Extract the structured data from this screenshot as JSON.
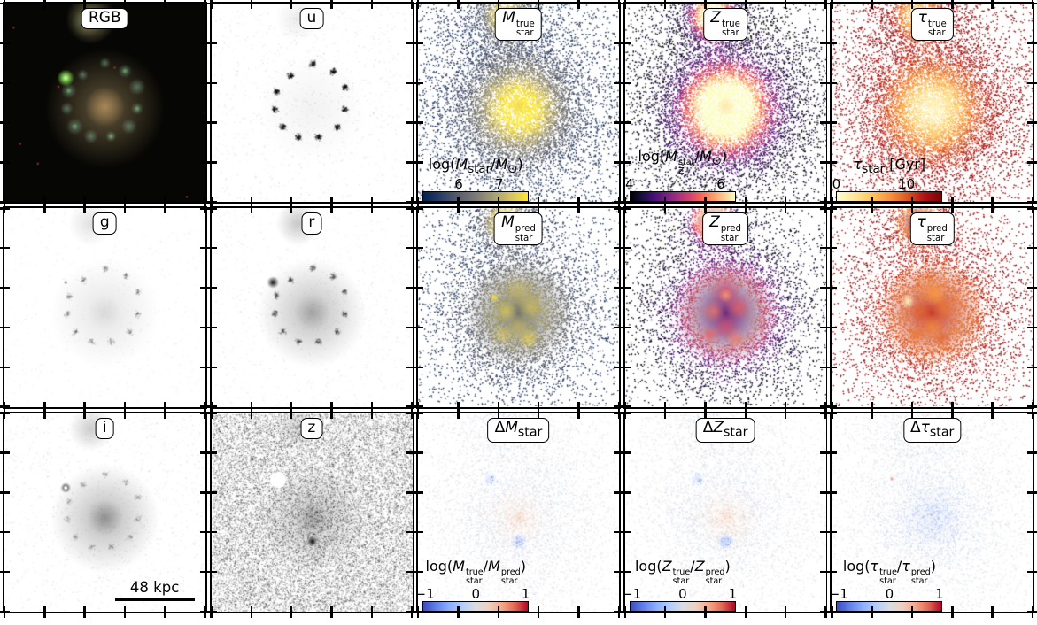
{
  "figure": {
    "colormaps": {
      "cividis": [
        "#00224e",
        "#2a3d67",
        "#575d6d",
        "#7b7a77",
        "#a59c74",
        "#d3c164",
        "#fde737"
      ],
      "magma": [
        "#000004",
        "#180f3e",
        "#451077",
        "#721f81",
        "#9f2f7f",
        "#cd4071",
        "#f1605d",
        "#fd9567",
        "#fec98d",
        "#fcfdbf"
      ],
      "heat_r": [
        "#fffbd0",
        "#fee79a",
        "#fdc55f",
        "#f89540",
        "#dd5a25",
        "#b21218",
        "#7a0403"
      ],
      "coolwarm": [
        "#3b4cc0",
        "#6282ea",
        "#8caffe",
        "#b4cdfb",
        "#d9dce1",
        "#edd1c2",
        "#f7a889",
        "#e26952",
        "#b40426"
      ]
    },
    "panels": [
      {
        "id": "rgb",
        "type": "rgb",
        "label_html": "RGB"
      },
      {
        "id": "u",
        "type": "band",
        "band": "u",
        "label_html": "u"
      },
      {
        "id": "mstar_true",
        "type": "scatter",
        "mode": "M",
        "cmap": "cividis",
        "label_html": "<i>M</i><span class='ss'><span>true</span><span>star</span></span>",
        "colorbar": {
          "cmap": "cividis",
          "label_html": "log(<i>M</i><sub>star</sub>/<i>M</i><sub>⊙</sub>)",
          "ticks": [
            {
              "text": "6",
              "pos": 0.34
            },
            {
              "text": "7",
              "pos": 0.72
            }
          ]
        }
      },
      {
        "id": "zstar_true",
        "type": "scatter",
        "mode": "Z",
        "cmap": "magma",
        "label_html": "<i>Z</i><span class='ss'><span>true</span><span>star</span></span>",
        "colorbar": {
          "cmap": "magma",
          "label_html": "log(<i>M</i><span class='ss'><span>star</span><span>Z</span></span>/<i>M</i><sub>⊙</sub>)",
          "ticks": [
            {
              "text": "4",
              "pos": 0.0
            },
            {
              "text": "6",
              "pos": 0.86
            }
          ]
        }
      },
      {
        "id": "tau_true",
        "type": "scatter",
        "mode": "T",
        "cmap": "heat_r",
        "label_html": "<i>τ</i><span class='ss'><span>true</span><span>star</span></span>",
        "colorbar": {
          "cmap": "heat_r",
          "label_html": "<i>τ</i><sub>star</sub> [Gyr]",
          "ticks": [
            {
              "text": "0",
              "pos": 0.0
            },
            {
              "text": "10",
              "pos": 0.66
            }
          ]
        }
      },
      {
        "id": "g",
        "type": "band",
        "band": "g",
        "label_html": "g"
      },
      {
        "id": "r",
        "type": "band",
        "band": "r",
        "label_html": "r"
      },
      {
        "id": "mstar_pred",
        "type": "pred",
        "mode": "M",
        "cmap": "cividis",
        "label_html": "<i>M</i><span class='ss'><span>pred</span><span>star</span></span>"
      },
      {
        "id": "zstar_pred",
        "type": "pred",
        "mode": "Z",
        "cmap": "magma",
        "label_html": "<i>Z</i><span class='ss'><span>pred</span><span>star</span></span>"
      },
      {
        "id": "tau_pred",
        "type": "pred",
        "mode": "T",
        "cmap": "heat_r",
        "label_html": "<i>τ</i><span class='ss'><span>pred</span><span>star</span></span>"
      },
      {
        "id": "i",
        "type": "band",
        "band": "i",
        "label_html": "i",
        "scalebar": {
          "label": "48 kpc"
        }
      },
      {
        "id": "z",
        "type": "band",
        "band": "z",
        "label_html": "z"
      },
      {
        "id": "dmstar",
        "type": "diff",
        "mode": "M",
        "cmap": "coolwarm",
        "label_html": "Δ<i>M</i><sub>star</sub>",
        "colorbar": {
          "cmap": "coolwarm",
          "label_html": "log(<i>M</i><span class='ss'><span>true</span><span>star</span></span>/<i>M</i><span class='ss'><span>pred</span><span>star</span></span>)",
          "ticks": [
            {
              "text": "−1",
              "pos": 0.02
            },
            {
              "text": "0",
              "pos": 0.5
            },
            {
              "text": "1",
              "pos": 0.97
            }
          ]
        }
      },
      {
        "id": "dzstar",
        "type": "diff",
        "mode": "Z",
        "cmap": "coolwarm",
        "label_html": "Δ<i>Z</i><sub>star</sub>",
        "colorbar": {
          "cmap": "coolwarm",
          "label_html": "log(<i>Z</i><span class='ss'><span>true</span><span>star</span></span>/<i>Z</i><span class='ss'><span>pred</span><span>star</span></span>)",
          "ticks": [
            {
              "text": "−1",
              "pos": 0.02
            },
            {
              "text": "0",
              "pos": 0.5
            },
            {
              "text": "1",
              "pos": 0.97
            }
          ]
        }
      },
      {
        "id": "dtau",
        "type": "diff",
        "mode": "T",
        "cmap": "coolwarm",
        "label_html": "Δ<i>τ</i><sub>star</sub>",
        "colorbar": {
          "cmap": "coolwarm",
          "label_html": "log(<i>τ</i><span class='ss'><span>true</span><span>star</span></span>/<i>τ</i><span class='ss'><span>pred</span><span>star</span></span>)",
          "ticks": [
            {
              "text": "−1",
              "pos": 0.02
            },
            {
              "text": "0",
              "pos": 0.5
            },
            {
              "text": "1",
              "pos": 0.97
            }
          ]
        }
      }
    ]
  }
}
